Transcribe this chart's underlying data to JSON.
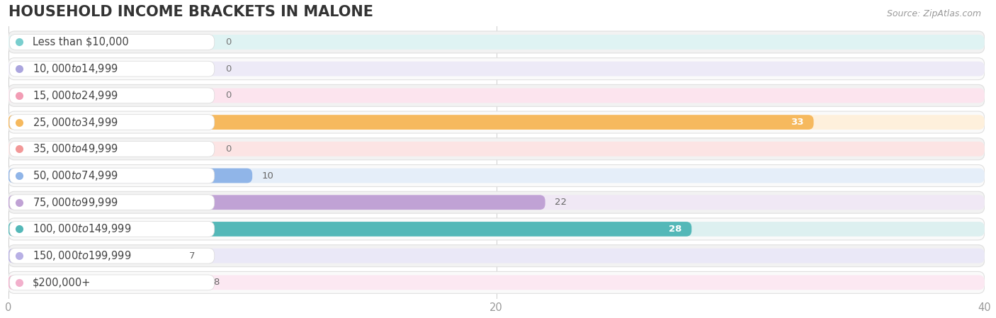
{
  "title": "HOUSEHOLD INCOME BRACKETS IN MALONE",
  "source": "Source: ZipAtlas.com",
  "categories": [
    "Less than $10,000",
    "$10,000 to $14,999",
    "$15,000 to $24,999",
    "$25,000 to $34,999",
    "$35,000 to $49,999",
    "$50,000 to $74,999",
    "$75,000 to $99,999",
    "$100,000 to $149,999",
    "$150,000 to $199,999",
    "$200,000+"
  ],
  "values": [
    0,
    0,
    0,
    33,
    0,
    10,
    22,
    28,
    7,
    8
  ],
  "bar_colors": [
    "#79cece",
    "#aba5de",
    "#f29db5",
    "#f6b95e",
    "#f29898",
    "#90b5e8",
    "#c0a2d5",
    "#54b8b8",
    "#b8b0e5",
    "#f2b0cc"
  ],
  "bar_background_colors": [
    "#dff3f3",
    "#edeaf7",
    "#fce4ee",
    "#fef0dc",
    "#fce4e4",
    "#e5eef9",
    "#f0e8f5",
    "#ddf0f0",
    "#eae8f7",
    "#fce8f2"
  ],
  "row_odd_color": "#f2f2f2",
  "row_even_color": "#fafafa",
  "row_border_color": "#e0e0e0",
  "xlim": [
    0,
    40
  ],
  "xticks": [
    0,
    20,
    40
  ],
  "background_color": "#ffffff",
  "title_fontsize": 15,
  "label_fontsize": 10.5,
  "value_fontsize": 9.5,
  "source_fontsize": 9
}
